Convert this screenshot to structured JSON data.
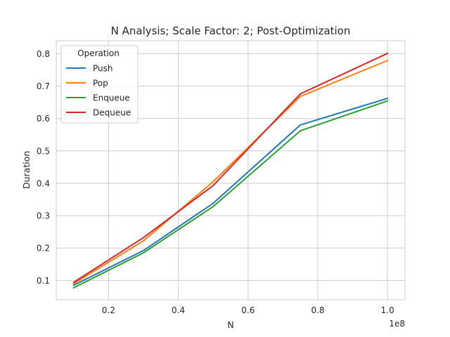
{
  "chart_data": {
    "type": "line",
    "title": "N Analysis; Scale Factor: 2; Post-Optimization",
    "xlabel": "N",
    "ylabel": "Duration",
    "x_offset_label": "1e8",
    "x": [
      0.1,
      0.3,
      0.5,
      0.75,
      1.0
    ],
    "xlim": [
      0.05,
      1.05
    ],
    "ylim": [
      0.04,
      0.84
    ],
    "xticks": [
      0.2,
      0.4,
      0.6,
      0.8,
      1.0
    ],
    "xtick_labels": [
      "0.2",
      "0.4",
      "0.6",
      "0.8",
      "1.0"
    ],
    "yticks": [
      0.1,
      0.2,
      0.3,
      0.4,
      0.5,
      0.6,
      0.7,
      0.8
    ],
    "ytick_labels": [
      "0.1",
      "0.2",
      "0.3",
      "0.4",
      "0.5",
      "0.6",
      "0.7",
      "0.8"
    ],
    "grid": true,
    "legend": {
      "title": "Operation",
      "placement": "top-left"
    },
    "series": [
      {
        "name": "Push",
        "color": "#1f77b4",
        "values": [
          0.085,
          0.192,
          0.338,
          0.58,
          0.662
        ]
      },
      {
        "name": "Pop",
        "color": "#ff7f0e",
        "values": [
          0.09,
          0.222,
          0.405,
          0.668,
          0.779
        ]
      },
      {
        "name": "Enqueue",
        "color": "#2ca02c",
        "values": [
          0.077,
          0.185,
          0.328,
          0.562,
          0.654
        ]
      },
      {
        "name": "Dequeue",
        "color": "#d62728",
        "values": [
          0.094,
          0.232,
          0.393,
          0.676,
          0.801
        ]
      }
    ]
  }
}
